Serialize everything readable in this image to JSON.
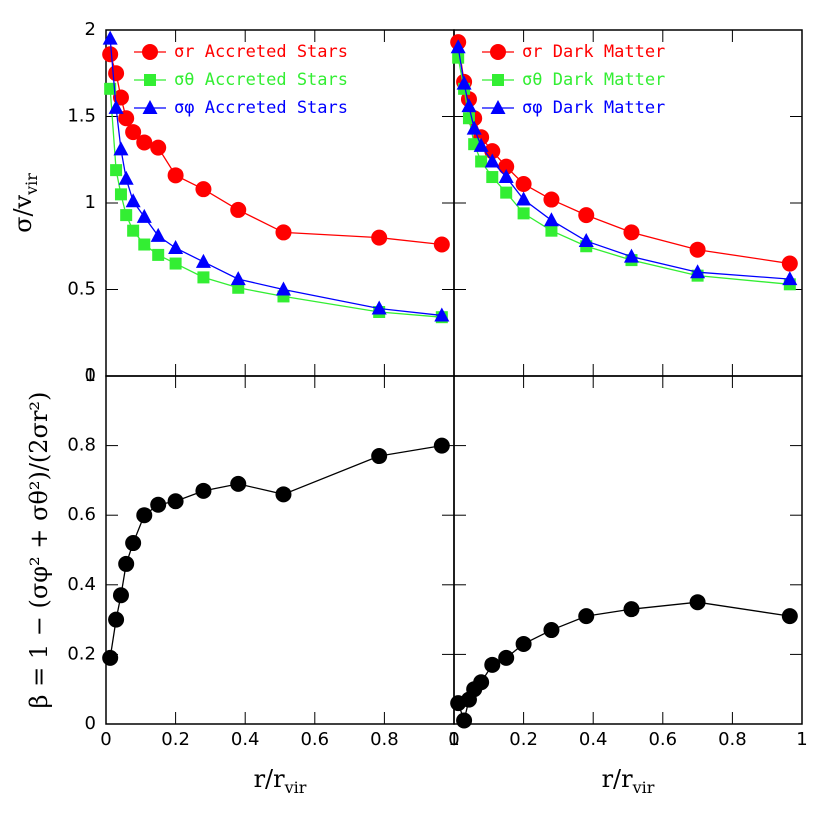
{
  "chart_data": [
    {
      "type": "line",
      "xlim": [
        0,
        1
      ],
      "ylim": [
        0,
        2
      ],
      "xticks": [
        0,
        0.2,
        0.4,
        0.6,
        0.8,
        1
      ],
      "yticks": [
        0,
        0.5,
        1,
        1.5,
        2
      ],
      "xtick_labels": false,
      "ytick_labels": true,
      "ylabel": "σ/v",
      "ylabel_sub": "vir",
      "legend": "upper left",
      "x": [
        0.012,
        0.029,
        0.043,
        0.058,
        0.078,
        0.11,
        0.15,
        0.2,
        0.28,
        0.38,
        0.51,
        0.785,
        0.965
      ],
      "series": [
        {
          "name": "σr Accreted Stars",
          "color": "#ff0000",
          "marker": "circle",
          "values": [
            1.86,
            1.75,
            1.61,
            1.49,
            1.41,
            1.35,
            1.32,
            1.16,
            1.08,
            0.96,
            0.83,
            0.8,
            0.76
          ]
        },
        {
          "name": "σθ Accreted Stars",
          "color": "#33ee33",
          "marker": "square",
          "values": [
            1.66,
            1.19,
            1.05,
            0.93,
            0.84,
            0.76,
            0.7,
            0.65,
            0.57,
            0.51,
            0.46,
            0.37,
            0.34
          ]
        },
        {
          "name": "σφ Accreted Stars",
          "color": "#0000ff",
          "marker": "triangle",
          "values": [
            1.95,
            1.55,
            1.31,
            1.14,
            1.01,
            0.92,
            0.81,
            0.74,
            0.66,
            0.56,
            0.5,
            0.39,
            0.35
          ]
        }
      ]
    },
    {
      "type": "line",
      "xlim": [
        0,
        1
      ],
      "ylim": [
        0,
        2
      ],
      "xticks": [
        0,
        0.2,
        0.4,
        0.6,
        0.8,
        1
      ],
      "yticks": [
        0,
        0.5,
        1,
        1.5,
        2
      ],
      "xtick_labels": false,
      "ytick_labels": false,
      "legend": "upper left",
      "x": [
        0.012,
        0.029,
        0.043,
        0.058,
        0.078,
        0.11,
        0.15,
        0.2,
        0.28,
        0.38,
        0.51,
        0.7,
        0.965
      ],
      "series": [
        {
          "name": "σr Dark Matter",
          "color": "#ff0000",
          "marker": "circle",
          "values": [
            1.93,
            1.7,
            1.6,
            1.49,
            1.38,
            1.3,
            1.21,
            1.11,
            1.02,
            0.93,
            0.83,
            0.73,
            0.65
          ]
        },
        {
          "name": "σθ Dark Matter",
          "color": "#33ee33",
          "marker": "square",
          "values": [
            1.84,
            1.66,
            1.49,
            1.34,
            1.24,
            1.15,
            1.06,
            0.94,
            0.84,
            0.75,
            0.67,
            0.58,
            0.53
          ]
        },
        {
          "name": "σφ Dark Matter",
          "color": "#0000ff",
          "marker": "triangle",
          "values": [
            1.9,
            1.69,
            1.56,
            1.43,
            1.33,
            1.24,
            1.15,
            1.02,
            0.9,
            0.78,
            0.69,
            0.6,
            0.56
          ]
        }
      ]
    },
    {
      "type": "line",
      "xlim": [
        0,
        1
      ],
      "ylim": [
        0,
        1
      ],
      "xticks": [
        0,
        0.2,
        0.4,
        0.6,
        0.8,
        1
      ],
      "yticks": [
        0,
        0.2,
        0.4,
        0.6,
        0.8,
        1
      ],
      "xtick_labels": true,
      "ytick_labels": true,
      "xlabel": "r/r",
      "xlabel_sub": "vir",
      "ylabel": "β = 1 − (σφ² + σθ²)/(2σr²)",
      "x": [
        0.012,
        0.029,
        0.043,
        0.058,
        0.078,
        0.11,
        0.15,
        0.2,
        0.28,
        0.38,
        0.51,
        0.785,
        0.965
      ],
      "series": [
        {
          "color": "#000000",
          "marker": "circle",
          "values": [
            0.19,
            0.3,
            0.37,
            0.46,
            0.52,
            0.6,
            0.63,
            0.64,
            0.67,
            0.69,
            0.66,
            0.77,
            0.8
          ]
        }
      ]
    },
    {
      "type": "line",
      "xlim": [
        0,
        1
      ],
      "ylim": [
        0,
        1
      ],
      "xticks": [
        0,
        0.2,
        0.4,
        0.6,
        0.8,
        1
      ],
      "yticks": [
        0,
        0.2,
        0.4,
        0.6,
        0.8,
        1
      ],
      "xtick_labels": true,
      "ytick_labels": false,
      "xlabel": "r/r",
      "xlabel_sub": "vir",
      "x": [
        0.012,
        0.029,
        0.043,
        0.058,
        0.078,
        0.11,
        0.15,
        0.2,
        0.28,
        0.38,
        0.51,
        0.7,
        0.965
      ],
      "series": [
        {
          "color": "#000000",
          "marker": "circle",
          "values": [
            0.06,
            0.01,
            0.07,
            0.1,
            0.12,
            0.17,
            0.19,
            0.23,
            0.27,
            0.31,
            0.33,
            0.35,
            0.31
          ]
        }
      ]
    }
  ]
}
